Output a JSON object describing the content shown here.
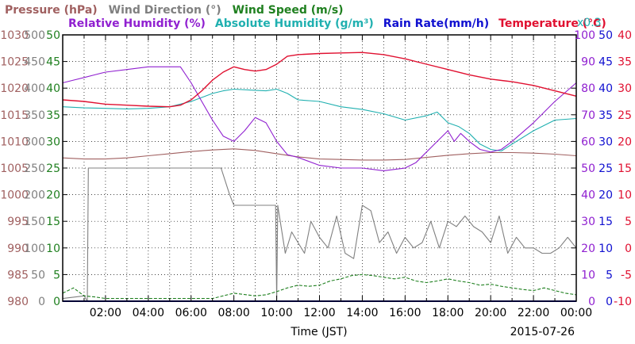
{
  "chart_data": {
    "type": "line",
    "date": "2015-07-26",
    "xlabel": "Time (JST)",
    "x_ticks": [
      "02:00",
      "04:00",
      "06:00",
      "08:00",
      "10:00",
      "12:00",
      "14:00",
      "16:00",
      "18:00",
      "20:00",
      "22:00",
      "00:00"
    ],
    "x_range_hours": [
      0,
      24
    ],
    "grid": true,
    "legend_rows": [
      [
        {
          "id": "pressure",
          "text": "Pressure (hPa)",
          "color": "#a06060"
        },
        {
          "id": "wind_dir",
          "text": "Wind Direction (°)",
          "color": "#808080"
        },
        {
          "id": "wind_speed",
          "text": "Wind Speed (m/s)",
          "color": "#208020"
        }
      ],
      [
        {
          "id": "rh",
          "text": "Relative Humidity (%)",
          "color": "#9020d0"
        },
        {
          "id": "ah",
          "text": "Absolute Humidity (g/m³)",
          "color": "#20b0b0"
        },
        {
          "id": "rain",
          "text": "Rain Rate(mm/h)",
          "color": "#1010d0"
        },
        {
          "id": "temp",
          "text": "Temperature (°C)",
          "color": "#e01030"
        }
      ]
    ],
    "rain_scale_note": "x0.3",
    "axes": {
      "pressure": {
        "color": "#a06060",
        "range": [
          980,
          1030
        ],
        "ticks": [
          "980",
          "985",
          "990",
          "995",
          "1000",
          "1005",
          "1010",
          "1015",
          "1020",
          "1025",
          "1030"
        ]
      },
      "wind_dir": {
        "color": "#808080",
        "range": [
          0,
          500
        ],
        "ticks": [
          "0",
          "50",
          "100",
          "150",
          "200",
          "250",
          "300",
          "350",
          "400",
          "450",
          "500"
        ]
      },
      "wind_speed": {
        "color": "#208020",
        "range": [
          0,
          50
        ],
        "ticks": [
          "0",
          "5",
          "10",
          "15",
          "20",
          "25",
          "30",
          "35",
          "40",
          "45",
          "50"
        ]
      },
      "rh": {
        "color": "#9020d0",
        "range": [
          0,
          100
        ],
        "ticks": [
          "0",
          "10",
          "20",
          "30",
          "40",
          "50",
          "60",
          "70",
          "80",
          "90",
          "100"
        ]
      },
      "rain": {
        "color": "#1010d0",
        "range": [
          0,
          50
        ],
        "ticks": [
          "0",
          "5",
          "10",
          "15",
          "20",
          "25",
          "30",
          "35",
          "40",
          "45",
          "50"
        ]
      },
      "temp": {
        "color": "#e01030",
        "range": [
          -10,
          40
        ],
        "ticks": [
          "-10",
          "-5",
          "0",
          "5",
          "10",
          "15",
          "20",
          "25",
          "30",
          "35",
          "40"
        ]
      }
    },
    "series": [
      {
        "id": "pressure",
        "name": "Pressure (hPa)",
        "color": "#a06060",
        "axis": "pressure",
        "x": [
          0,
          1,
          2,
          3,
          4,
          5,
          6,
          7,
          8,
          9,
          10,
          11,
          12,
          13,
          14,
          15,
          16,
          17,
          18,
          19,
          20,
          21,
          22,
          23,
          24
        ],
        "y": [
          1006.9,
          1006.7,
          1006.7,
          1006.9,
          1007.3,
          1007.7,
          1008.1,
          1008.4,
          1008.6,
          1008.3,
          1007.7,
          1007.1,
          1006.7,
          1006.6,
          1006.5,
          1006.5,
          1006.6,
          1007.0,
          1007.4,
          1007.7,
          1007.9,
          1007.9,
          1007.8,
          1007.6,
          1007.3
        ]
      },
      {
        "id": "wind_dir",
        "name": "Wind Direction",
        "color": "#808080",
        "axis": "wind_dir",
        "x": [
          0,
          1,
          1.15,
          1.2,
          3,
          5,
          7.4,
          7.8,
          8,
          9,
          9.95,
          10.0,
          10.05,
          10.4,
          10.7,
          11.0,
          11.3,
          11.6,
          12.0,
          12.4,
          12.8,
          13.2,
          13.6,
          14.0,
          14.4,
          14.8,
          15.2,
          15.6,
          16.0,
          16.4,
          16.8,
          17.2,
          17.6,
          18.0,
          18.4,
          18.8,
          19.2,
          19.6,
          20.0,
          20.4,
          20.8,
          21.2,
          21.6,
          22.0,
          22.4,
          22.8,
          23.2,
          23.6,
          24
        ],
        "y": [
          5,
          10,
          0,
          250,
          250,
          250,
          250,
          200,
          180,
          180,
          180,
          0,
          180,
          90,
          130,
          110,
          90,
          150,
          120,
          100,
          160,
          90,
          80,
          180,
          170,
          110,
          130,
          90,
          120,
          100,
          110,
          150,
          100,
          150,
          140,
          160,
          140,
          130,
          110,
          160,
          90,
          120,
          100,
          100,
          90,
          90,
          100,
          120,
          100
        ]
      },
      {
        "id": "wind_speed",
        "name": "Wind Speed",
        "color": "#208020",
        "axis": "wind_speed",
        "x": [
          0,
          0.5,
          1,
          1.5,
          2,
          3,
          4,
          5,
          6,
          7,
          8,
          9,
          9.5,
          10,
          10.5,
          11,
          11.5,
          12,
          12.5,
          13,
          13.5,
          14,
          14.5,
          15,
          15.5,
          16,
          16.5,
          17,
          17.5,
          18,
          18.5,
          19,
          19.5,
          20,
          20.5,
          21,
          21.5,
          22,
          22.5,
          23,
          23.5,
          24
        ],
        "y": [
          1.5,
          2.5,
          1.0,
          0.8,
          0.5,
          0.5,
          0.5,
          0.5,
          0.5,
          0.5,
          1.5,
          1.0,
          1.2,
          1.8,
          2.5,
          3.0,
          2.8,
          3.0,
          3.8,
          4.2,
          4.8,
          5.0,
          4.8,
          4.5,
          4.2,
          4.5,
          3.8,
          3.5,
          3.8,
          4.2,
          3.8,
          3.5,
          3.0,
          3.2,
          2.8,
          2.5,
          2.2,
          2.0,
          2.5,
          2.0,
          1.5,
          1.2
        ]
      },
      {
        "id": "rh",
        "name": "Relative Humidity",
        "color": "#9020d0",
        "axis": "rh",
        "x": [
          0,
          0.5,
          1,
          1.5,
          2,
          3,
          4,
          5,
          5.5,
          6,
          6.5,
          7,
          7.5,
          8,
          8.5,
          9,
          9.5,
          10,
          10.5,
          11,
          12,
          13,
          14,
          15,
          16,
          16.5,
          17,
          17.5,
          18,
          18.3,
          18.6,
          19,
          19.5,
          20,
          20.5,
          21,
          22,
          23,
          24
        ],
        "y": [
          82,
          83,
          84,
          85,
          86,
          87,
          88,
          88,
          88,
          82,
          75,
          68,
          62,
          60,
          64,
          69,
          67,
          60,
          55,
          54,
          51,
          50,
          50,
          49,
          50,
          52,
          56,
          60,
          64,
          60,
          63,
          60,
          57,
          56,
          57,
          60,
          67,
          75,
          82
        ]
      },
      {
        "id": "ah",
        "name": "Absolute Humidity",
        "color": "#20b0b0",
        "axis": "wind_speed",
        "x": [
          0,
          1,
          2,
          3,
          4,
          5,
          6,
          7,
          7.5,
          8,
          9,
          9.5,
          10,
          10.5,
          11,
          12,
          13,
          14,
          15,
          16,
          17,
          17.5,
          18,
          18.5,
          19,
          19.5,
          20,
          20.5,
          21,
          22,
          23,
          24
        ],
        "y": [
          36.5,
          36.3,
          36.2,
          36.1,
          36.2,
          36.5,
          37.5,
          39.0,
          39.5,
          39.8,
          39.6,
          39.5,
          39.8,
          39.0,
          37.8,
          37.5,
          36.5,
          36.0,
          35.2,
          34.0,
          34.8,
          35.5,
          33.5,
          32.8,
          31.5,
          29.5,
          28.5,
          28.2,
          29.5,
          32.0,
          34.0,
          34.3
        ]
      },
      {
        "id": "rain",
        "name": "Rain Rate",
        "color": "#1010d0",
        "axis": "rain",
        "x": [
          0,
          24
        ],
        "y": [
          0,
          0
        ]
      },
      {
        "id": "temp",
        "name": "Temperature",
        "color": "#e01030",
        "axis": "temp",
        "x": [
          0,
          1,
          2,
          3,
          4,
          5,
          5.5,
          6,
          6.5,
          7,
          7.5,
          8,
          8.5,
          9,
          9.5,
          10,
          10.5,
          11,
          12,
          13,
          14,
          15,
          16,
          17,
          18,
          19,
          20,
          21,
          22,
          23,
          24
        ],
        "y": [
          27.8,
          27.5,
          27.0,
          26.8,
          26.6,
          26.5,
          26.8,
          27.8,
          29.5,
          31.5,
          33.0,
          34.0,
          33.5,
          33.2,
          33.5,
          34.5,
          36.0,
          36.3,
          36.5,
          36.6,
          36.7,
          36.3,
          35.5,
          34.5,
          33.5,
          32.5,
          31.7,
          31.2,
          30.5,
          29.5,
          28.5
        ]
      }
    ]
  }
}
